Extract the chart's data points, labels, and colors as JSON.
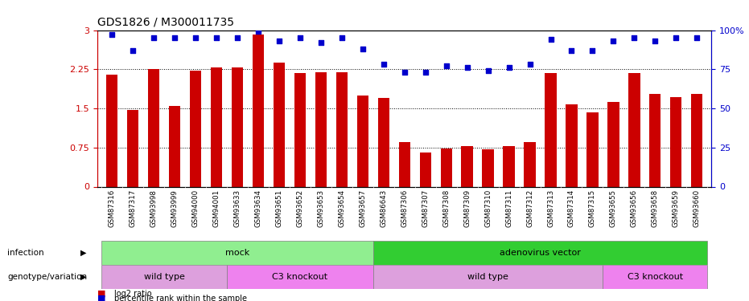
{
  "title": "GDS1826 / M300011735",
  "samples": [
    "GSM87316",
    "GSM87317",
    "GSM93998",
    "GSM93999",
    "GSM94000",
    "GSM94001",
    "GSM93633",
    "GSM93634",
    "GSM93651",
    "GSM93652",
    "GSM93653",
    "GSM93654",
    "GSM93657",
    "GSM86643",
    "GSM87306",
    "GSM87307",
    "GSM87308",
    "GSM87309",
    "GSM87310",
    "GSM87311",
    "GSM87312",
    "GSM87313",
    "GSM87314",
    "GSM87315",
    "GSM93655",
    "GSM93656",
    "GSM93658",
    "GSM93659",
    "GSM93660"
  ],
  "log2_ratio": [
    2.15,
    1.47,
    2.25,
    1.55,
    2.22,
    2.28,
    2.28,
    2.92,
    2.37,
    2.18,
    2.2,
    2.19,
    1.75,
    1.7,
    0.85,
    0.65,
    0.73,
    0.78,
    0.72,
    0.77,
    0.85,
    2.17,
    1.58,
    1.42,
    1.63,
    2.18,
    1.77,
    1.72,
    1.77
  ],
  "percentile": [
    97,
    87,
    95,
    95,
    95,
    95,
    95,
    99,
    93,
    95,
    92,
    95,
    88,
    78,
    73,
    73,
    77,
    76,
    74,
    76,
    78,
    94,
    87,
    87,
    93,
    95,
    93,
    95,
    95
  ],
  "infection_groups": [
    {
      "label": "mock",
      "start": 0,
      "end": 12,
      "color": "#90EE90"
    },
    {
      "label": "adenovirus vector",
      "start": 13,
      "end": 28,
      "color": "#32CD32"
    }
  ],
  "genotype_groups": [
    {
      "label": "wild type",
      "start": 0,
      "end": 5,
      "color": "#DDA0DD"
    },
    {
      "label": "C3 knockout",
      "start": 6,
      "end": 12,
      "color": "#EE82EE"
    },
    {
      "label": "wild type",
      "start": 13,
      "end": 23,
      "color": "#DDA0DD"
    },
    {
      "label": "C3 knockout",
      "start": 24,
      "end": 28,
      "color": "#EE82EE"
    }
  ],
  "bar_color": "#CC0000",
  "dot_color": "#0000CC",
  "ylim_left": [
    0,
    3
  ],
  "ylim_right": [
    0,
    100
  ],
  "yticks_left": [
    0,
    0.75,
    1.5,
    2.25,
    3
  ],
  "yticks_right": [
    0,
    25,
    50,
    75,
    100
  ],
  "ytick_labels_left": [
    "0",
    "0.75",
    "1.5",
    "2.25",
    "3"
  ],
  "ytick_labels_right": [
    "0",
    "25",
    "50",
    "75",
    "100%"
  ],
  "legend_labels": [
    "log2 ratio",
    "percentile rank within the sample"
  ],
  "legend_colors": [
    "#CC0000",
    "#0000CC"
  ],
  "bar_width": 0.55,
  "main_bg": "#ffffff",
  "xtick_bg": "#d0d0d0"
}
